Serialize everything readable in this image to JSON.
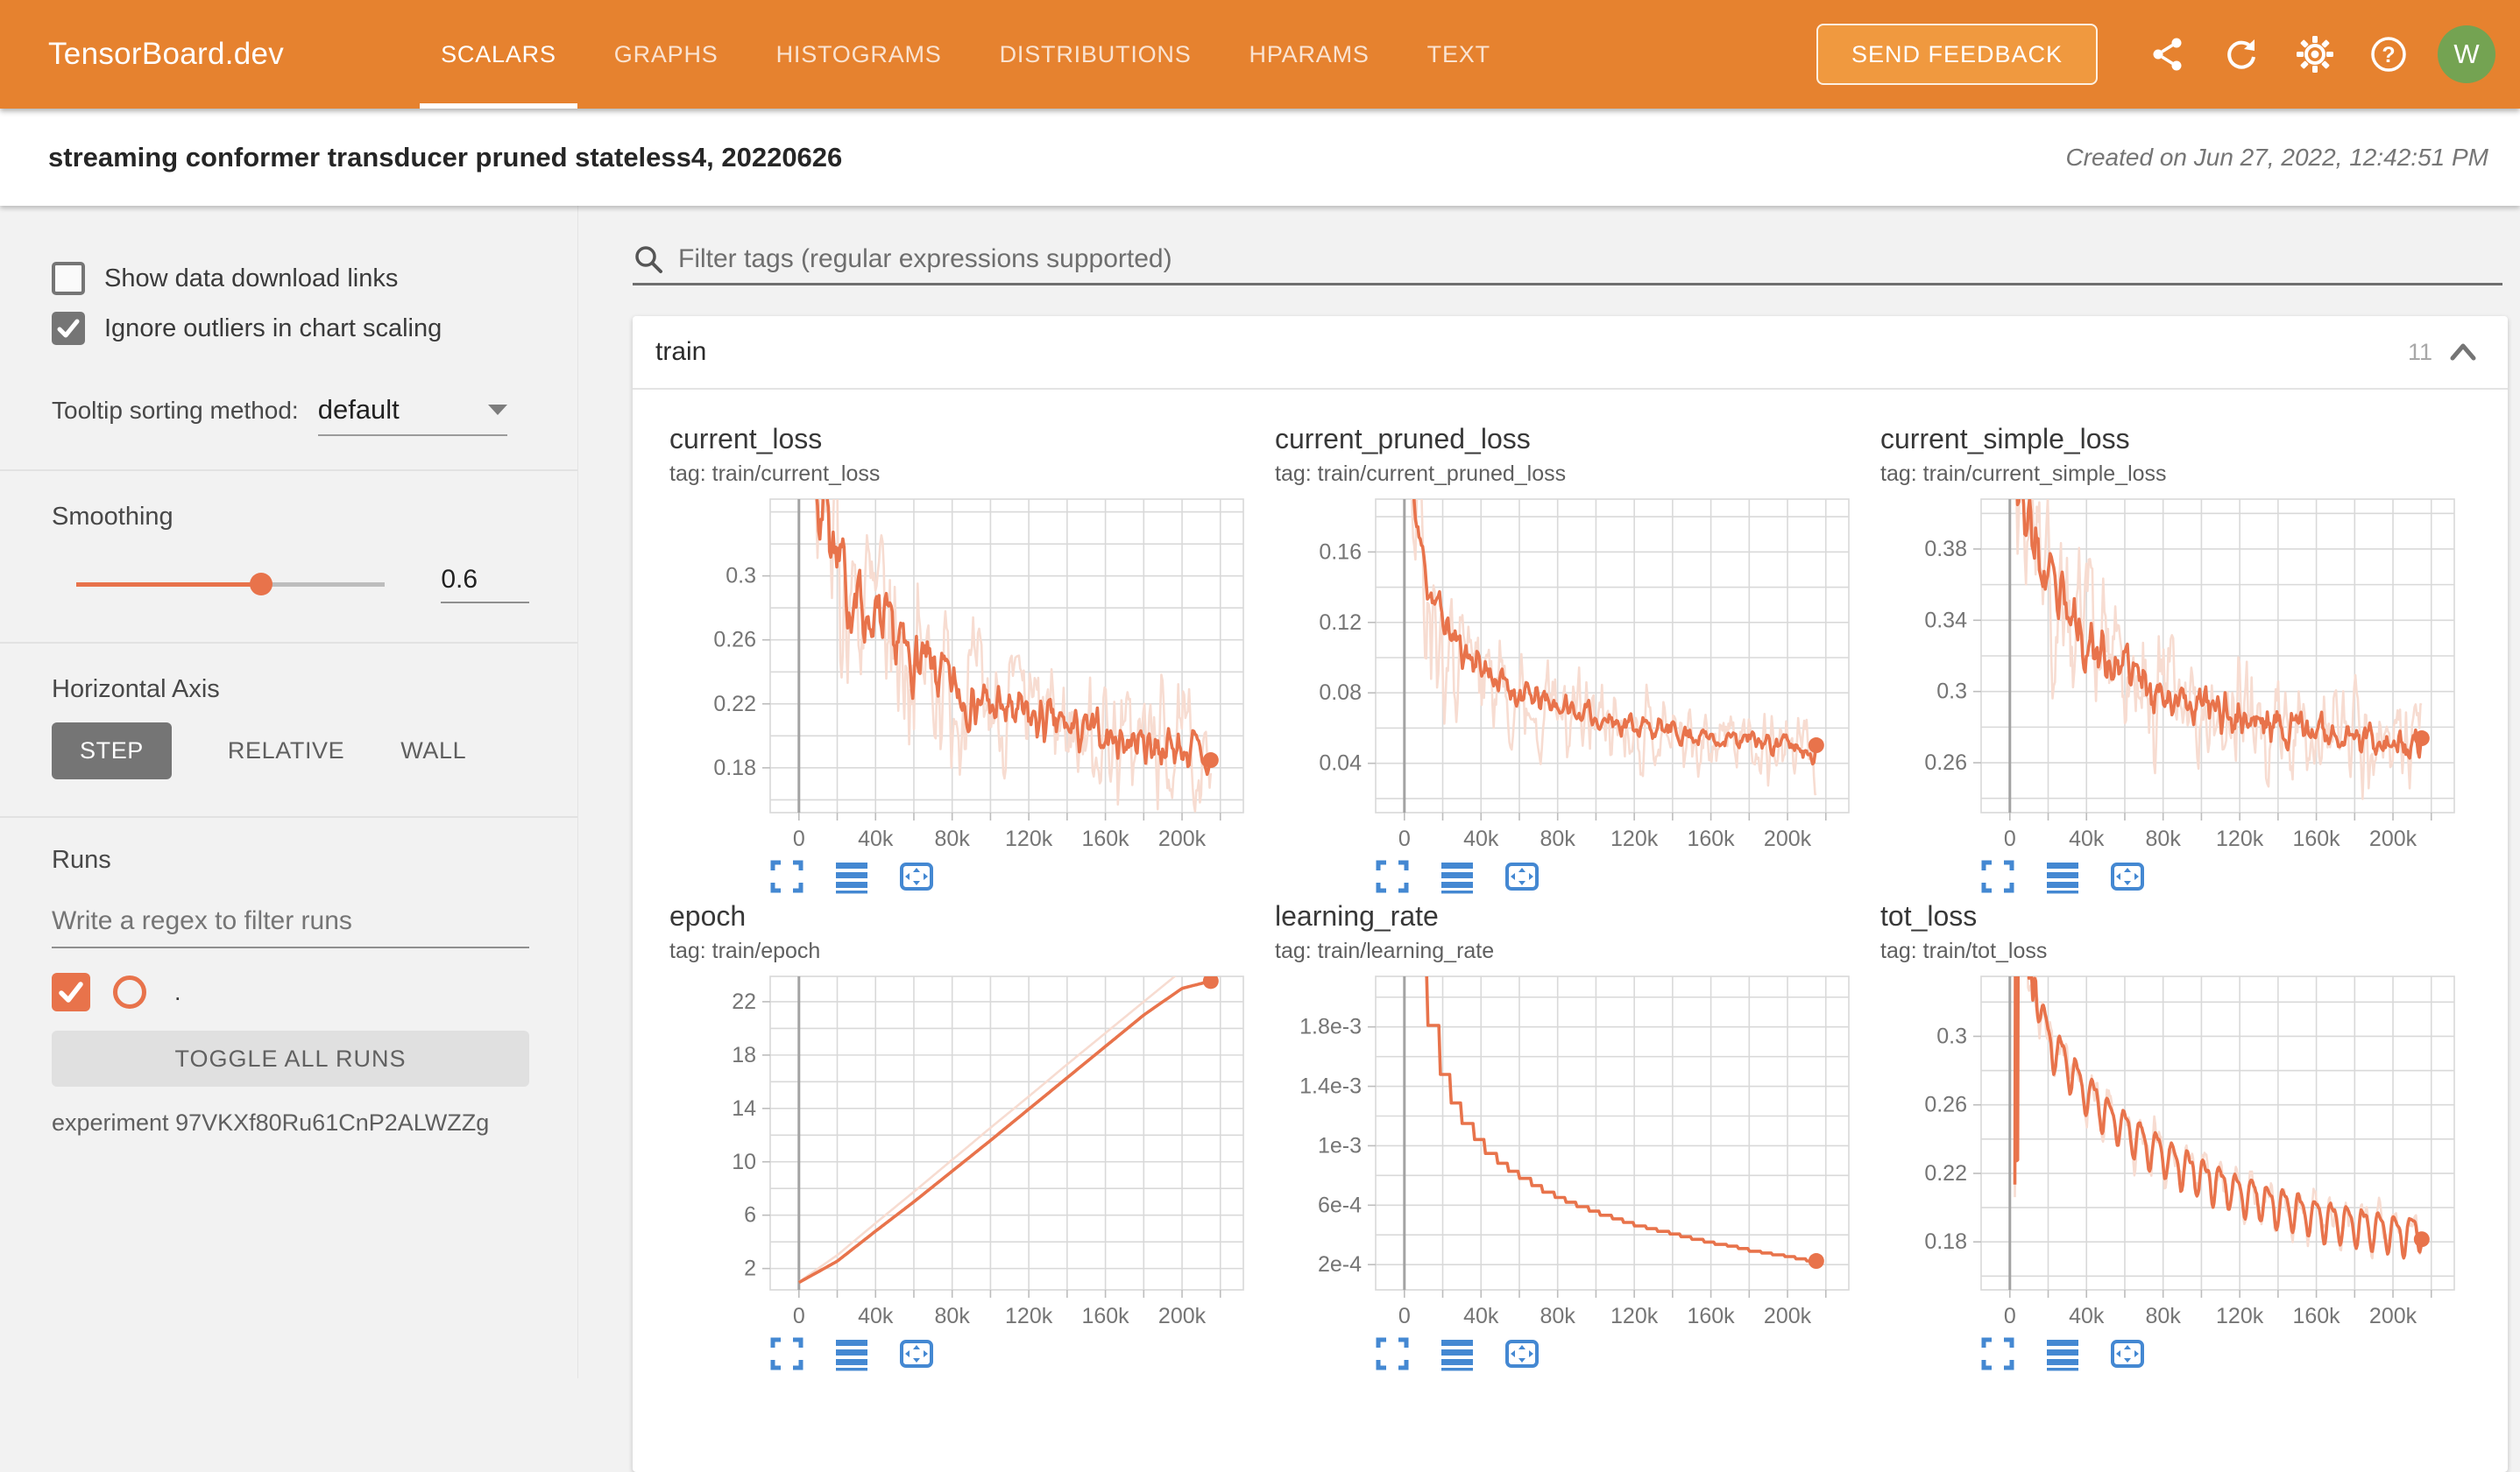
{
  "colors": {
    "header_orange": "#e6822f",
    "feedback_orange": "#f0993f",
    "avatar_green": "#74a352",
    "line_orange": "#e8734b",
    "raw_orange": "#f7dcd1",
    "icon_blue": "#4488d2",
    "grid_gray": "#d9d9d9",
    "zero_line_gray": "#a3a3a3",
    "tick_text_gray": "#757575"
  },
  "header": {
    "logo": "TensorBoard.dev",
    "tabs": [
      {
        "label": "SCALARS",
        "active": true
      },
      {
        "label": "GRAPHS",
        "active": false
      },
      {
        "label": "HISTOGRAMS",
        "active": false
      },
      {
        "label": "DISTRIBUTIONS",
        "active": false
      },
      {
        "label": "HPARAMS",
        "active": false
      },
      {
        "label": "TEXT",
        "active": false
      }
    ],
    "send_feedback_label": "SEND FEEDBACK",
    "icon_names": [
      "share-icon",
      "refresh-icon",
      "settings-icon",
      "help-icon"
    ],
    "avatar_letter": "W"
  },
  "title_bar": {
    "title": "streaming conformer transducer pruned stateless4, 20220626",
    "created": "Created on Jun 27, 2022, 12:42:51 PM"
  },
  "sidebar": {
    "show_download_label": "Show data download links",
    "ignore_outliers_label": "Ignore outliers in chart scaling",
    "show_download_checked": false,
    "ignore_outliers_checked": true,
    "tooltip_label": "Tooltip sorting method:",
    "tooltip_value": "default",
    "smoothing_label": "Smoothing",
    "smoothing_value": "0.6",
    "axis_label": "Horizontal Axis",
    "axis_options": [
      "STEP",
      "RELATIVE",
      "WALL"
    ],
    "axis_selected": "STEP",
    "runs_label": "Runs",
    "runs_placeholder": "Write a regex to filter runs",
    "run_name": ".",
    "run_checked": true,
    "toggle_all_label": "TOGGLE ALL RUNS",
    "experiment_label": "experiment 97VKXf80Ru61CnP2ALWZZg"
  },
  "main": {
    "filter_placeholder": "Filter tags (regular expressions supported)",
    "section": {
      "name": "train",
      "count": "11"
    },
    "chart_toolbar_icons": [
      "expand-icon",
      "lines-icon",
      "fit-domain-icon"
    ]
  },
  "chart_data": [
    {
      "type": "line",
      "title": "current_loss",
      "tag": "tag: train/current_loss",
      "x_ticks": [
        [
          0,
          "0"
        ],
        [
          40000,
          "40k"
        ],
        [
          80000,
          "80k"
        ],
        [
          120000,
          "120k"
        ],
        [
          160000,
          "160k"
        ],
        [
          200000,
          "200k"
        ]
      ],
      "x_minor_step": 20000,
      "x_range": [
        -15000,
        232000
      ],
      "x_grid_max": 220000,
      "y_ticks": [
        [
          0.18,
          "0.18"
        ],
        [
          0.22,
          "0.22"
        ],
        [
          0.26,
          "0.26"
        ],
        [
          0.3,
          "0.3"
        ]
      ],
      "y_minor_step": 0.02,
      "y_range": [
        0.152,
        0.348
      ],
      "data_x0": 1500,
      "samples": 340,
      "seed": 7,
      "trend": [
        [
          1500,
          0.46
        ],
        [
          6000,
          0.4
        ],
        [
          10000,
          0.34
        ],
        [
          15000,
          0.355
        ],
        [
          20000,
          0.302
        ],
        [
          25000,
          0.292
        ],
        [
          30000,
          0.286
        ],
        [
          40000,
          0.27
        ],
        [
          50000,
          0.259
        ],
        [
          60000,
          0.246
        ],
        [
          70000,
          0.24
        ],
        [
          80000,
          0.231
        ],
        [
          90000,
          0.222
        ],
        [
          100000,
          0.218
        ],
        [
          110000,
          0.215
        ],
        [
          120000,
          0.211
        ],
        [
          130000,
          0.208
        ],
        [
          140000,
          0.205
        ],
        [
          150000,
          0.202
        ],
        [
          160000,
          0.2
        ],
        [
          170000,
          0.198
        ],
        [
          180000,
          0.196
        ],
        [
          190000,
          0.194
        ],
        [
          200000,
          0.192
        ],
        [
          207000,
          0.19
        ],
        [
          215000,
          0.179
        ]
      ],
      "noise": 0.012,
      "raw_noise": 0.034,
      "volatility": 1.8,
      "vol_decay": 45000,
      "has_raw": true,
      "end_dot": true
    },
    {
      "type": "line",
      "title": "current_pruned_loss",
      "tag": "tag: train/current_pruned_loss",
      "x_ticks": [
        [
          0,
          "0"
        ],
        [
          40000,
          "40k"
        ],
        [
          80000,
          "80k"
        ],
        [
          120000,
          "120k"
        ],
        [
          160000,
          "160k"
        ],
        [
          200000,
          "200k"
        ]
      ],
      "x_minor_step": 20000,
      "x_range": [
        -15000,
        232000
      ],
      "x_grid_max": 220000,
      "y_ticks": [
        [
          0.04,
          "0.04"
        ],
        [
          0.08,
          "0.08"
        ],
        [
          0.12,
          "0.12"
        ],
        [
          0.16,
          "0.16"
        ]
      ],
      "y_minor_step": 0.02,
      "y_range": [
        0.012,
        0.19
      ],
      "data_x0": 2000,
      "samples": 340,
      "seed": 11,
      "trend": [
        [
          2000,
          0.22
        ],
        [
          5000,
          0.19
        ],
        [
          8000,
          0.165
        ],
        [
          12000,
          0.145
        ],
        [
          15000,
          0.135
        ],
        [
          20000,
          0.122
        ],
        [
          25000,
          0.112
        ],
        [
          30000,
          0.105
        ],
        [
          40000,
          0.096
        ],
        [
          50000,
          0.086
        ],
        [
          60000,
          0.079
        ],
        [
          70000,
          0.076
        ],
        [
          80000,
          0.073
        ],
        [
          90000,
          0.069
        ],
        [
          100000,
          0.066
        ],
        [
          120000,
          0.062
        ],
        [
          140000,
          0.058
        ],
        [
          160000,
          0.055
        ],
        [
          180000,
          0.053
        ],
        [
          200000,
          0.051
        ],
        [
          215000,
          0.046
        ]
      ],
      "noise": 0.0055,
      "raw_noise": 0.019,
      "volatility": 1.6,
      "vol_decay": 45000,
      "has_raw": true,
      "end_dot": true
    },
    {
      "type": "line",
      "title": "current_simple_loss",
      "tag": "tag: train/current_simple_loss",
      "x_ticks": [
        [
          0,
          "0"
        ],
        [
          40000,
          "40k"
        ],
        [
          80000,
          "80k"
        ],
        [
          120000,
          "120k"
        ],
        [
          160000,
          "160k"
        ],
        [
          200000,
          "200k"
        ]
      ],
      "x_minor_step": 20000,
      "x_range": [
        -15000,
        232000
      ],
      "x_grid_max": 220000,
      "y_ticks": [
        [
          0.26,
          "0.26"
        ],
        [
          0.3,
          "0.3"
        ],
        [
          0.34,
          "0.34"
        ],
        [
          0.38,
          "0.38"
        ]
      ],
      "y_minor_step": 0.02,
      "y_range": [
        0.232,
        0.408
      ],
      "data_x0": 1500,
      "samples": 340,
      "seed": 23,
      "trend": [
        [
          1500,
          0.44
        ],
        [
          4000,
          0.42
        ],
        [
          8000,
          0.4
        ],
        [
          12000,
          0.385
        ],
        [
          16000,
          0.37
        ],
        [
          20000,
          0.358
        ],
        [
          25000,
          0.35
        ],
        [
          30000,
          0.342
        ],
        [
          40000,
          0.33
        ],
        [
          50000,
          0.318
        ],
        [
          60000,
          0.312
        ],
        [
          70000,
          0.306
        ],
        [
          80000,
          0.3
        ],
        [
          90000,
          0.296
        ],
        [
          100000,
          0.292
        ],
        [
          120000,
          0.286
        ],
        [
          140000,
          0.281
        ],
        [
          160000,
          0.278
        ],
        [
          180000,
          0.276
        ],
        [
          200000,
          0.272
        ],
        [
          215000,
          0.266
        ]
      ],
      "noise": 0.009,
      "raw_noise": 0.026,
      "volatility": 1.5,
      "vol_decay": 50000,
      "has_raw": true,
      "end_dot": true
    },
    {
      "type": "line",
      "title": "epoch",
      "tag": "tag: train/epoch",
      "x_ticks": [
        [
          0,
          "0"
        ],
        [
          40000,
          "40k"
        ],
        [
          80000,
          "80k"
        ],
        [
          120000,
          "120k"
        ],
        [
          160000,
          "160k"
        ],
        [
          200000,
          "200k"
        ]
      ],
      "x_minor_step": 20000,
      "x_range": [
        -15000,
        232000
      ],
      "x_grid_max": 220000,
      "y_ticks": [
        [
          2,
          "2"
        ],
        [
          6,
          "6"
        ],
        [
          10,
          "10"
        ],
        [
          14,
          "14"
        ],
        [
          18,
          "18"
        ],
        [
          22,
          "22"
        ]
      ],
      "y_minor_step": 2,
      "y_range": [
        0.4,
        23.9
      ],
      "data_x0": 0,
      "samples": 220,
      "seed": 31,
      "trend": [
        [
          0,
          0.95
        ],
        [
          20000,
          2.55
        ],
        [
          40000,
          4.8
        ],
        [
          60000,
          7.0
        ],
        [
          80000,
          9.3
        ],
        [
          100000,
          11.6
        ],
        [
          120000,
          13.95
        ],
        [
          140000,
          16.3
        ],
        [
          160000,
          18.65
        ],
        [
          180000,
          21.0
        ],
        [
          200000,
          23.0
        ],
        [
          215000,
          23.55
        ]
      ],
      "raw_trend": [
        [
          0,
          1.0
        ],
        [
          20000,
          3.0
        ],
        [
          40000,
          5.4
        ],
        [
          60000,
          7.75
        ],
        [
          80000,
          10.15
        ],
        [
          100000,
          12.55
        ],
        [
          120000,
          14.9
        ],
        [
          140000,
          17.3
        ],
        [
          160000,
          19.65
        ],
        [
          180000,
          22.0
        ],
        [
          200000,
          24.35
        ],
        [
          206000,
          25.0
        ]
      ],
      "noise": 0,
      "raw_noise": 0,
      "volatility": 0,
      "vol_decay": 1,
      "has_raw": true,
      "end_dot": true
    },
    {
      "type": "line",
      "title": "learning_rate",
      "tag": "tag: train/learning_rate",
      "x_ticks": [
        [
          0,
          "0"
        ],
        [
          40000,
          "40k"
        ],
        [
          80000,
          "80k"
        ],
        [
          120000,
          "120k"
        ],
        [
          160000,
          "160k"
        ],
        [
          200000,
          "200k"
        ]
      ],
      "x_minor_step": 20000,
      "x_range": [
        -15000,
        232000
      ],
      "x_grid_max": 220000,
      "y_ticks": [
        [
          0.0002,
          "2e-4"
        ],
        [
          0.0006,
          "6e-4"
        ],
        [
          0.001,
          "1e-3"
        ],
        [
          0.0014,
          "1.4e-3"
        ],
        [
          0.0018,
          "1.8e-3"
        ]
      ],
      "y_minor_step": 0.0002,
      "y_range": [
        3e-05,
        0.00214
      ],
      "data_x0": 5000,
      "samples": 260,
      "seed": 41,
      "steps": 6000,
      "trend": [
        [
          5000,
          0.00228
        ],
        [
          10000,
          0.00195
        ],
        [
          15000,
          0.0016
        ],
        [
          20000,
          0.0014
        ],
        [
          25000,
          0.00126
        ],
        [
          30000,
          0.00115
        ],
        [
          40000,
          0.00097
        ],
        [
          50000,
          0.00086
        ],
        [
          60000,
          0.00078
        ],
        [
          70000,
          0.0007
        ],
        [
          80000,
          0.00064
        ],
        [
          90000,
          0.00059
        ],
        [
          100000,
          0.00054
        ],
        [
          110000,
          0.0005
        ],
        [
          120000,
          0.00046
        ],
        [
          130000,
          0.00043
        ],
        [
          140000,
          0.0004
        ],
        [
          150000,
          0.00037
        ],
        [
          160000,
          0.00034
        ],
        [
          170000,
          0.00032
        ],
        [
          180000,
          0.00029
        ],
        [
          190000,
          0.00027
        ],
        [
          200000,
          0.00025
        ],
        [
          207000,
          0.00023
        ],
        [
          215000,
          0.000215
        ]
      ],
      "noise": 0,
      "raw_noise": 0,
      "volatility": 0,
      "vol_decay": 1,
      "has_raw": false,
      "end_dot": true
    },
    {
      "type": "line",
      "title": "tot_loss",
      "tag": "tag: train/tot_loss",
      "x_ticks": [
        [
          0,
          "0"
        ],
        [
          40000,
          "40k"
        ],
        [
          80000,
          "80k"
        ],
        [
          120000,
          "120k"
        ],
        [
          160000,
          "160k"
        ],
        [
          200000,
          "200k"
        ]
      ],
      "x_minor_step": 20000,
      "x_range": [
        -15000,
        232000
      ],
      "x_grid_max": 220000,
      "y_ticks": [
        [
          0.18,
          "0.18"
        ],
        [
          0.22,
          "0.22"
        ],
        [
          0.26,
          "0.26"
        ],
        [
          0.3,
          "0.3"
        ]
      ],
      "y_minor_step": 0.02,
      "y_range": [
        0.152,
        0.335
      ],
      "data_x0": 2600,
      "samples": 430,
      "seed": 53,
      "trend": [
        [
          2600,
          0.215
        ],
        [
          2750,
          0.47
        ],
        [
          3100,
          0.47
        ],
        [
          3300,
          0.225
        ],
        [
          4300,
          0.23
        ],
        [
          4600,
          0.47
        ],
        [
          6400,
          0.47
        ],
        [
          7200,
          0.36
        ],
        [
          8000,
          0.345
        ],
        [
          9000,
          0.362
        ],
        [
          9800,
          0.33
        ],
        [
          10800,
          0.345
        ],
        [
          12000,
          0.322
        ],
        [
          13000,
          0.332
        ],
        [
          20000,
          0.298
        ],
        [
          30000,
          0.283
        ],
        [
          40000,
          0.268
        ],
        [
          50000,
          0.256
        ],
        [
          60000,
          0.247
        ],
        [
          70000,
          0.238
        ],
        [
          80000,
          0.231
        ],
        [
          90000,
          0.224
        ],
        [
          100000,
          0.219
        ],
        [
          110000,
          0.214
        ],
        [
          120000,
          0.209
        ],
        [
          130000,
          0.205
        ],
        [
          140000,
          0.201
        ],
        [
          150000,
          0.198
        ],
        [
          160000,
          0.195
        ],
        [
          170000,
          0.192
        ],
        [
          180000,
          0.19
        ],
        [
          190000,
          0.188
        ],
        [
          200000,
          0.186
        ],
        [
          208000,
          0.184
        ],
        [
          215000,
          0.189
        ]
      ],
      "osc": {
        "amp": 0.0105,
        "period": 8300,
        "start": 13500,
        "sharp": 0.35
      },
      "noise": 0.0015,
      "raw_noise": 0.0075,
      "volatility": 0.8,
      "vol_decay": 40000,
      "has_raw": true,
      "end_dot": true
    }
  ]
}
